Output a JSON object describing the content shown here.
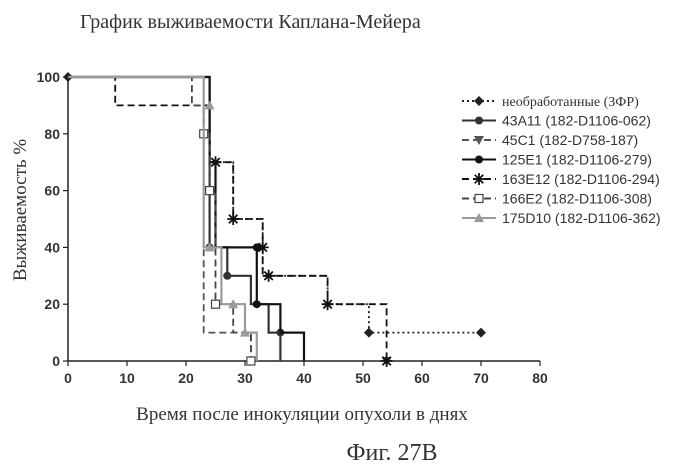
{
  "chart_data": {
    "type": "line",
    "step": true,
    "title": "График выживаемости Каплана-Мейера",
    "xlabel": "Время после инокуляции опухоли в днях",
    "ylabel": "Выживаемость %",
    "caption": "Фиг. 27B",
    "xlim": [
      0,
      80
    ],
    "ylim": [
      0,
      100
    ],
    "xticks": [
      0,
      10,
      20,
      30,
      40,
      50,
      60,
      70,
      80
    ],
    "yticks": [
      0,
      20,
      40,
      60,
      80,
      100
    ],
    "grid": false,
    "legend_position": "right",
    "series": [
      {
        "name": "необработанные (ЗФР)",
        "style": "dotted",
        "marker": "diamond",
        "color": "#222222",
        "points": [
          [
            0,
            100
          ],
          [
            24,
            100
          ],
          [
            24,
            70
          ],
          [
            28,
            70
          ],
          [
            28,
            50
          ],
          [
            33,
            50
          ],
          [
            33,
            30
          ],
          [
            44,
            30
          ],
          [
            44,
            20
          ],
          [
            51,
            20
          ],
          [
            51,
            10
          ],
          [
            70,
            10
          ]
        ],
        "marks": [
          [
            0,
            100
          ],
          [
            51,
            10
          ],
          [
            70,
            10
          ]
        ]
      },
      {
        "name": "43A11 (182-D1106-062)",
        "style": "solid",
        "marker": "circle",
        "color": "#333333",
        "points": [
          [
            0,
            100
          ],
          [
            24,
            100
          ],
          [
            24,
            40
          ],
          [
            27,
            40
          ],
          [
            27,
            30
          ],
          [
            31,
            30
          ],
          [
            31,
            20
          ],
          [
            34,
            20
          ],
          [
            34,
            10
          ],
          [
            36,
            10
          ],
          [
            36,
            0
          ]
        ],
        "marks": [
          [
            24,
            40
          ],
          [
            27,
            30
          ],
          [
            36,
            10
          ]
        ]
      },
      {
        "name": "45C1 (182-D758-187)",
        "style": "dashed",
        "marker": "triangle-down",
        "color": "#555555",
        "points": [
          [
            0,
            100
          ],
          [
            23,
            100
          ],
          [
            23,
            10
          ],
          [
            31,
            10
          ],
          [
            31,
            0
          ]
        ],
        "marks": [
          [
            54,
            0
          ]
        ]
      },
      {
        "name": "125E1 (182-D1106-279)",
        "style": "solid",
        "marker": "circle",
        "color": "#111111",
        "points": [
          [
            0,
            100
          ],
          [
            24,
            100
          ],
          [
            24,
            70
          ],
          [
            25,
            70
          ],
          [
            25,
            40
          ],
          [
            32,
            40
          ],
          [
            32,
            20
          ],
          [
            36,
            20
          ],
          [
            36,
            10
          ],
          [
            40,
            10
          ],
          [
            40,
            0
          ]
        ],
        "marks": [
          [
            32,
            40
          ],
          [
            32,
            20
          ]
        ]
      },
      {
        "name": "163E12 (182-D1106-294)",
        "style": "dashed",
        "marker": "star",
        "color": "#111111",
        "points": [
          [
            0,
            100
          ],
          [
            8,
            100
          ],
          [
            8,
            90
          ],
          [
            21,
            90
          ],
          [
            21,
            90
          ],
          [
            24,
            90
          ],
          [
            24,
            70
          ],
          [
            28,
            70
          ],
          [
            28,
            50
          ],
          [
            33,
            50
          ],
          [
            33,
            30
          ],
          [
            44,
            30
          ],
          [
            44,
            20
          ],
          [
            54,
            20
          ],
          [
            54,
            0
          ]
        ],
        "marks": [
          [
            25,
            70
          ],
          [
            28,
            50
          ],
          [
            33,
            40
          ],
          [
            34,
            30
          ],
          [
            44,
            20
          ],
          [
            54,
            0
          ]
        ]
      },
      {
        "name": "166E2 (182-D1106-308)",
        "style": "dashed",
        "marker": "square-open",
        "color": "#444444",
        "points": [
          [
            0,
            100
          ],
          [
            21,
            100
          ],
          [
            21,
            90
          ],
          [
            23,
            90
          ],
          [
            23,
            80
          ],
          [
            24,
            80
          ],
          [
            24,
            60
          ],
          [
            25,
            60
          ],
          [
            25,
            20
          ],
          [
            28,
            20
          ],
          [
            28,
            10
          ],
          [
            31,
            10
          ],
          [
            31,
            0
          ]
        ],
        "marks": [
          [
            23,
            80
          ],
          [
            24,
            60
          ],
          [
            25,
            20
          ],
          [
            31,
            0
          ]
        ]
      },
      {
        "name": "175D10 (182-D1106-362)",
        "style": "solid",
        "marker": "triangle-up",
        "color": "#9a9a9a",
        "points": [
          [
            0,
            100
          ],
          [
            23,
            100
          ],
          [
            23,
            40
          ],
          [
            26,
            40
          ],
          [
            26,
            20
          ],
          [
            30,
            20
          ],
          [
            30,
            10
          ],
          [
            32,
            10
          ],
          [
            32,
            0
          ]
        ],
        "marks": [
          [
            24,
            90
          ],
          [
            24,
            40
          ],
          [
            28,
            20
          ],
          [
            30,
            10
          ]
        ]
      }
    ]
  }
}
